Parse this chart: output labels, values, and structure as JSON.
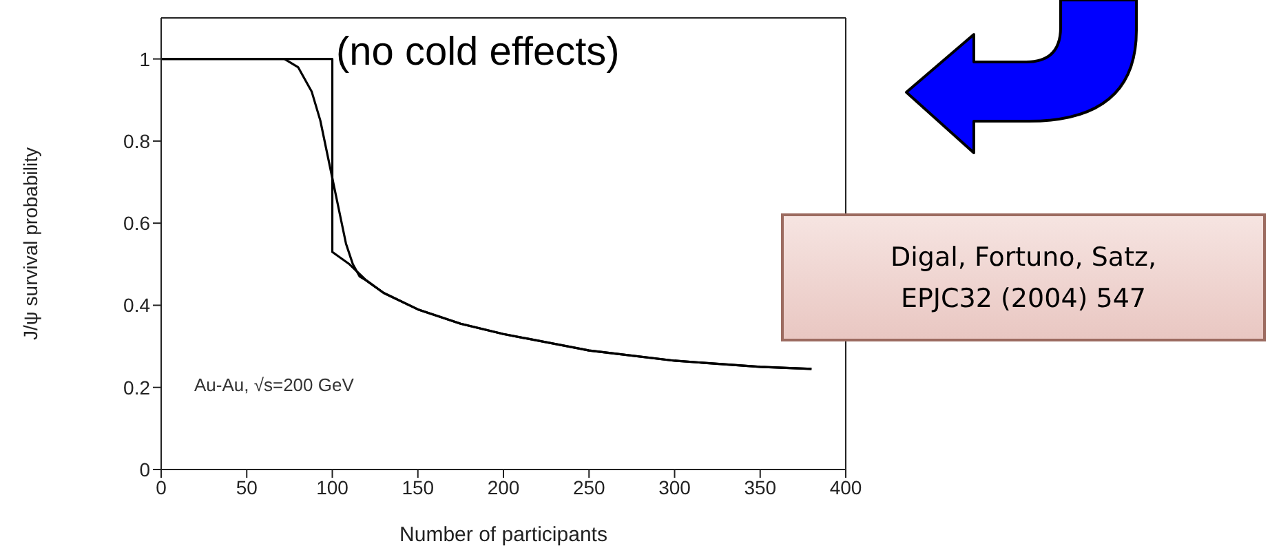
{
  "chart_data": {
    "type": "line",
    "xlabel": "Number of participants",
    "ylabel": "J/ψ survival probability",
    "xlim": [
      0,
      400
    ],
    "xticks": [
      0,
      50,
      100,
      150,
      200,
      250,
      300,
      350,
      400
    ],
    "ylim": [
      0,
      1.1
    ],
    "yticks": [
      0,
      0.2,
      0.4,
      0.6,
      0.8,
      1
    ],
    "grid": false,
    "marker": "none",
    "line_style": "solid",
    "series": [
      {
        "color": "#000000",
        "x": [
          0,
          100,
          100,
          110,
          120,
          130,
          150,
          175,
          200,
          250,
          300,
          350,
          380
        ],
        "values": [
          1,
          1,
          0.53,
          0.5,
          0.46,
          0.43,
          0.39,
          0.355,
          0.33,
          0.29,
          0.265,
          0.25,
          0.245
        ]
      },
      {
        "color": "#000000",
        "x": [
          0,
          72,
          80,
          88,
          93,
          97,
          100,
          105,
          108,
          112,
          116,
          120,
          130,
          150,
          175,
          200,
          250,
          300,
          350,
          380
        ],
        "values": [
          1,
          1,
          0.98,
          0.92,
          0.85,
          0.77,
          0.71,
          0.61,
          0.55,
          0.5,
          0.47,
          0.46,
          0.43,
          0.39,
          0.355,
          0.33,
          0.29,
          0.265,
          0.25,
          0.245
        ]
      }
    ],
    "annotations": [
      "(no cold effects)",
      "Au-Au, √s=200 GeV",
      "Digal, Fortuno, Satz, EPJC32 (2004) 547"
    ]
  }
}
